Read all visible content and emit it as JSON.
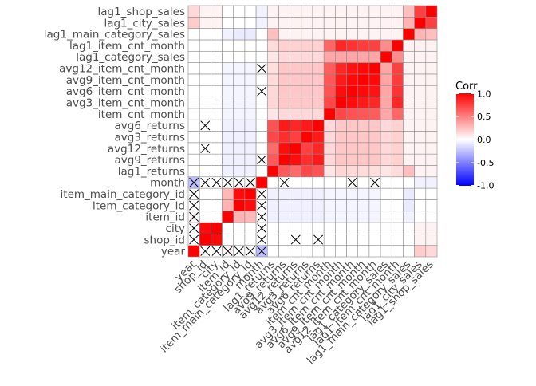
{
  "chart_data": {
    "type": "heatmap",
    "variables": [
      "year",
      "shop_id",
      "city",
      "item_id",
      "item_category_id",
      "item_main_category_id",
      "month",
      "lag1_returns",
      "avg9_returns",
      "avg12_returns",
      "avg3_returns",
      "avg6_returns",
      "item_cnt_month",
      "avg3_item_cnt_month",
      "avg6_item_cnt_month",
      "avg9_item_cnt_month",
      "avg12_item_cnt_month",
      "lag1_category_sales",
      "lag1_item_cnt_month",
      "lag1_main_category_sales",
      "lag1_city_sales",
      "lag1_shop_sales"
    ],
    "x_labels": [
      "year",
      "shop_id",
      "city",
      "item_id",
      "item_category_id",
      "item_main_category_id",
      "month",
      "lag1_returns",
      "avg9_returns",
      "avg12_returns",
      "avg3_returns",
      "avg6_returns",
      "item_cnt_month",
      "avg3_item_cnt_month",
      "avg6_item_cnt_month",
      "avg9_item_cnt_month",
      "avg12_item_cnt_month",
      "lag1_category_sales",
      "lag1_item_cnt_month",
      "lag1_main_category_sales",
      "lag1_city_sales",
      "lag1_shop_sales"
    ],
    "y_labels": [
      "year",
      "shop_id",
      "city",
      "item_id",
      "item_category_id",
      "item_main_category_id",
      "month",
      "lag1_returns",
      "avg9_returns",
      "avg12_returns",
      "avg3_returns",
      "avg6_returns",
      "item_cnt_month",
      "avg3_item_cnt_month",
      "avg6_item_cnt_month",
      "avg9_item_cnt_month",
      "avg12_item_cnt_month",
      "lag1_category_sales",
      "lag1_item_cnt_month",
      "lag1_main_category_sales",
      "lag1_city_sales",
      "lag1_shop_sales"
    ],
    "matrix": [
      [
        1.0,
        0.0,
        0.0,
        0.03,
        0.0,
        0.0,
        -0.25,
        0.0,
        0.0,
        0.0,
        0.0,
        0.0,
        0.0,
        0.0,
        0.0,
        0.0,
        0.0,
        0.0,
        0.0,
        0.0,
        0.2,
        0.15
      ],
      [
        0.0,
        1.0,
        0.96,
        0.0,
        0.0,
        0.0,
        0.0,
        0.0,
        0.0,
        0.0,
        0.0,
        0.0,
        0.0,
        0.0,
        0.0,
        0.0,
        0.0,
        0.0,
        0.0,
        0.0,
        0.05,
        0.05
      ],
      [
        0.0,
        0.96,
        1.0,
        0.0,
        0.0,
        0.0,
        0.0,
        0.0,
        0.0,
        0.0,
        0.0,
        0.0,
        0.0,
        0.0,
        0.0,
        0.0,
        0.0,
        0.0,
        0.0,
        0.0,
        0.05,
        0.05
      ],
      [
        0.03,
        0.0,
        0.0,
        1.0,
        0.3,
        0.28,
        0.0,
        -0.06,
        -0.06,
        -0.06,
        -0.06,
        -0.06,
        -0.04,
        -0.04,
        -0.04,
        -0.04,
        -0.04,
        0.0,
        0.0,
        -0.05,
        0.0,
        0.0
      ],
      [
        0.0,
        0.0,
        0.0,
        0.3,
        1.0,
        0.95,
        0.0,
        -0.06,
        -0.06,
        -0.06,
        -0.06,
        -0.06,
        -0.04,
        -0.04,
        -0.04,
        -0.04,
        -0.04,
        0.0,
        0.0,
        -0.08,
        0.0,
        0.0
      ],
      [
        0.0,
        0.0,
        0.0,
        0.28,
        0.95,
        1.0,
        0.0,
        -0.06,
        -0.06,
        -0.06,
        -0.06,
        -0.06,
        -0.04,
        -0.04,
        -0.04,
        -0.04,
        -0.04,
        0.0,
        0.0,
        -0.08,
        0.0,
        0.0
      ],
      [
        -0.25,
        0.0,
        0.0,
        0.0,
        0.0,
        0.0,
        1.0,
        0.0,
        0.0,
        0.0,
        0.0,
        0.0,
        0.0,
        0.0,
        0.0,
        0.0,
        0.0,
        0.0,
        0.0,
        0.0,
        -0.05,
        -0.05
      ],
      [
        0.0,
        0.0,
        0.0,
        -0.06,
        -0.06,
        -0.06,
        0.0,
        1.0,
        0.65,
        0.58,
        0.72,
        0.68,
        0.1,
        0.16,
        0.15,
        0.14,
        0.13,
        0.1,
        0.14,
        0.25,
        0.05,
        0.05
      ],
      [
        0.0,
        0.0,
        0.0,
        -0.06,
        -0.06,
        -0.06,
        0.0,
        0.65,
        1.0,
        0.95,
        0.82,
        0.9,
        0.15,
        0.22,
        0.22,
        0.22,
        0.22,
        0.15,
        0.18,
        0.05,
        0.05,
        0.05
      ],
      [
        0.0,
        0.0,
        0.0,
        -0.06,
        -0.06,
        -0.06,
        0.0,
        0.58,
        0.95,
        1.0,
        0.75,
        0.85,
        0.15,
        0.22,
        0.22,
        0.22,
        0.22,
        0.15,
        0.18,
        0.05,
        0.05,
        0.05
      ],
      [
        0.0,
        0.0,
        0.0,
        -0.06,
        -0.06,
        -0.06,
        0.0,
        0.72,
        0.82,
        0.75,
        1.0,
        0.9,
        0.15,
        0.22,
        0.22,
        0.22,
        0.22,
        0.15,
        0.18,
        0.05,
        0.05,
        0.05
      ],
      [
        0.0,
        0.0,
        0.0,
        -0.06,
        -0.06,
        -0.06,
        0.0,
        0.68,
        0.9,
        0.85,
        0.9,
        1.0,
        0.15,
        0.22,
        0.22,
        0.22,
        0.22,
        0.15,
        0.18,
        0.05,
        0.05,
        0.05
      ],
      [
        0.0,
        0.0,
        0.0,
        -0.04,
        -0.04,
        -0.04,
        0.0,
        0.1,
        0.15,
        0.15,
        0.15,
        0.15,
        1.0,
        0.72,
        0.68,
        0.66,
        0.64,
        0.35,
        0.6,
        0.05,
        0.05,
        0.05
      ],
      [
        0.0,
        0.0,
        0.0,
        -0.04,
        -0.04,
        -0.04,
        0.0,
        0.16,
        0.22,
        0.22,
        0.22,
        0.22,
        0.72,
        1.0,
        0.95,
        0.9,
        0.85,
        0.35,
        0.85,
        0.05,
        0.05,
        0.05
      ],
      [
        0.0,
        0.0,
        0.0,
        -0.04,
        -0.04,
        -0.04,
        0.0,
        0.15,
        0.22,
        0.22,
        0.22,
        0.22,
        0.68,
        0.95,
        1.0,
        0.97,
        0.93,
        0.35,
        0.8,
        0.05,
        0.05,
        0.05
      ],
      [
        0.0,
        0.0,
        0.0,
        -0.04,
        -0.04,
        -0.04,
        0.0,
        0.14,
        0.22,
        0.22,
        0.22,
        0.22,
        0.66,
        0.9,
        0.97,
        1.0,
        0.97,
        0.35,
        0.77,
        0.05,
        0.05,
        0.05
      ],
      [
        0.0,
        0.0,
        0.0,
        -0.04,
        -0.04,
        -0.04,
        0.0,
        0.13,
        0.22,
        0.22,
        0.22,
        0.22,
        0.64,
        0.85,
        0.93,
        0.97,
        1.0,
        0.35,
        0.75,
        0.05,
        0.05,
        0.05
      ],
      [
        0.0,
        0.0,
        0.0,
        0.0,
        0.0,
        0.0,
        0.0,
        0.1,
        0.15,
        0.15,
        0.15,
        0.15,
        0.35,
        0.35,
        0.35,
        0.35,
        0.35,
        1.0,
        0.45,
        0.05,
        0.05,
        0.05
      ],
      [
        0.0,
        0.0,
        0.0,
        0.0,
        0.0,
        0.0,
        0.0,
        0.14,
        0.18,
        0.18,
        0.18,
        0.18,
        0.6,
        0.85,
        0.8,
        0.77,
        0.75,
        0.45,
        1.0,
        0.05,
        0.05,
        0.05
      ],
      [
        0.0,
        0.0,
        0.0,
        -0.05,
        -0.08,
        -0.08,
        0.0,
        0.25,
        0.05,
        0.05,
        0.05,
        0.05,
        0.05,
        0.05,
        0.05,
        0.05,
        0.05,
        0.05,
        0.05,
        1.0,
        0.3,
        0.25
      ],
      [
        0.2,
        0.05,
        0.05,
        0.0,
        0.0,
        0.0,
        -0.05,
        0.05,
        0.05,
        0.05,
        0.05,
        0.05,
        0.05,
        0.05,
        0.05,
        0.05,
        0.05,
        0.05,
        0.05,
        0.3,
        1.0,
        0.75
      ],
      [
        0.15,
        0.05,
        0.05,
        0.0,
        0.0,
        0.0,
        -0.05,
        0.05,
        0.05,
        0.05,
        0.05,
        0.05,
        0.05,
        0.05,
        0.05,
        0.05,
        0.05,
        0.05,
        0.05,
        0.25,
        0.75,
        1.0
      ]
    ],
    "insignificant_cells": [
      [
        0,
        1
      ],
      [
        0,
        2
      ],
      [
        0,
        3
      ],
      [
        0,
        4
      ],
      [
        0,
        5
      ],
      [
        0,
        6
      ],
      [
        1,
        0
      ],
      [
        2,
        0
      ],
      [
        3,
        0
      ],
      [
        4,
        0
      ],
      [
        5,
        0
      ],
      [
        6,
        0
      ],
      [
        1,
        6
      ],
      [
        2,
        6
      ],
      [
        3,
        6
      ],
      [
        4,
        6
      ],
      [
        5,
        6
      ],
      [
        6,
        1
      ],
      [
        6,
        2
      ],
      [
        6,
        3
      ],
      [
        6,
        4
      ],
      [
        6,
        5
      ],
      [
        1,
        9
      ],
      [
        9,
        1
      ],
      [
        1,
        11
      ],
      [
        11,
        1
      ],
      [
        6,
        8
      ],
      [
        8,
        6
      ],
      [
        6,
        14
      ],
      [
        14,
        6
      ],
      [
        6,
        16
      ],
      [
        16,
        6
      ]
    ],
    "legend": {
      "title": "Corr",
      "ticks": [
        1.0,
        0.5,
        0.0,
        -0.5,
        -1.0
      ],
      "tick_labels": [
        "1.0",
        "0.5",
        "0.0",
        "-0.5",
        "-1.0"
      ],
      "placement": "right"
    },
    "color_low": "#0000FF",
    "color_mid": "#FFFFFF",
    "color_high": "#FF0000",
    "grid_color": "#8C8C8C",
    "value_range": [
      -1,
      1
    ],
    "cross_mark_color": "#000000"
  }
}
